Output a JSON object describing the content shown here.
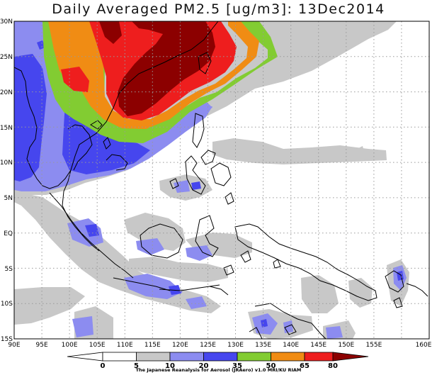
{
  "title": "Daily Averaged PM2.5 [ug/m3]: 13Dec2014",
  "credit": "The Japanese Reanalysis for Aerosol (JRAero) v1.0 MRI/KU RIAM",
  "lat_labels": [
    "30N",
    "25N",
    "20N",
    "15N",
    "10N",
    "5N",
    "EQ",
    "5S",
    "10S",
    "15S"
  ],
  "lon_labels": [
    "90E",
    "95E",
    "100E",
    "105E",
    "110E",
    "115E",
    "120E",
    "125E",
    "130E",
    "135E",
    "140E",
    "145E",
    "150E",
    "155E",
    "160E"
  ],
  "colorbar": {
    "ticks": [
      "0",
      "5",
      "10",
      "20",
      "35",
      "50",
      "65",
      "80"
    ],
    "colors": [
      "#ffffff",
      "#ffffff",
      "#c8c8c8",
      "#8c8cf0",
      "#4646ee",
      "#82cc32",
      "#f08c14",
      "#ee1e1e",
      "#8c0000"
    ]
  }
}
